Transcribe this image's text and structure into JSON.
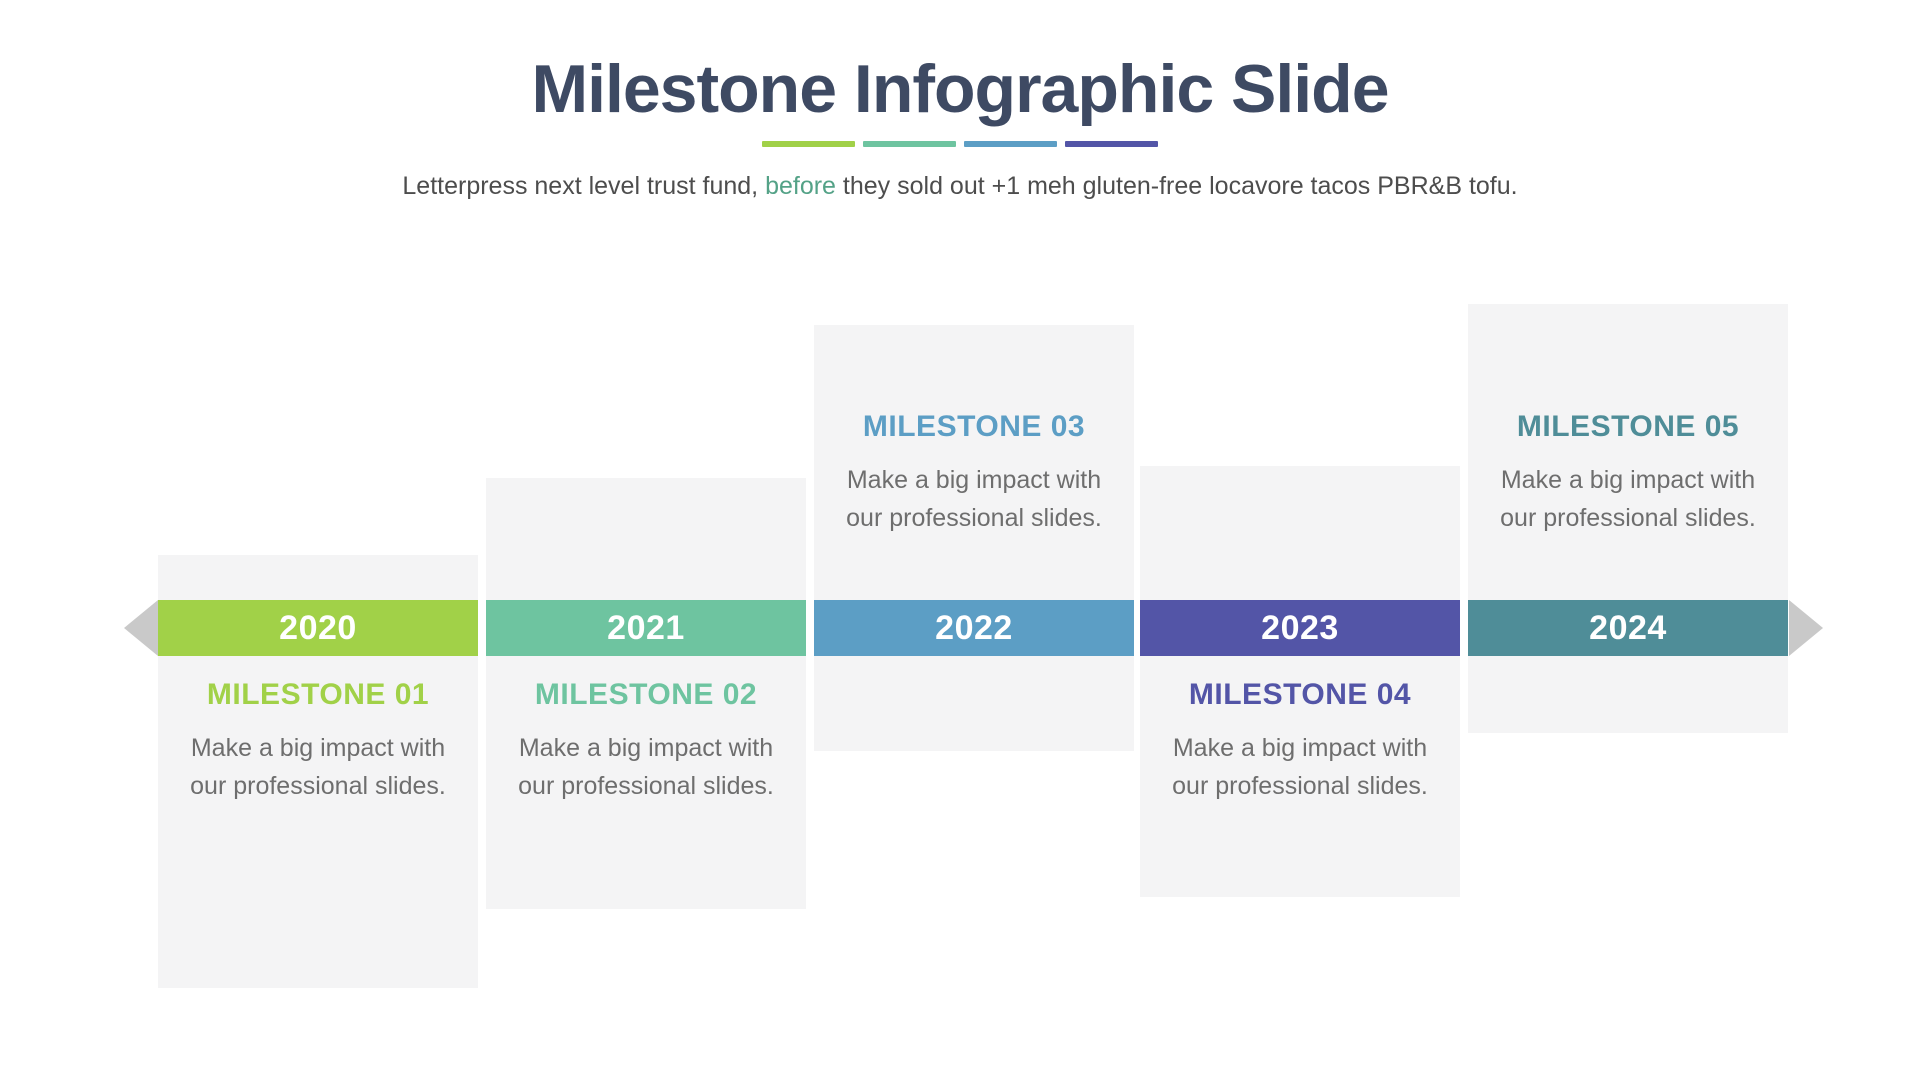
{
  "slide": {
    "title": "Milestone Infographic Slide",
    "title_color": "#3e4a63",
    "subtitle": {
      "pre": "Letterpress next level trust fund, ",
      "highlight": "before",
      "post": " they sold out +1 meh gluten-free locavore tacos PBR&B tofu."
    },
    "highlight_color": "#54a287",
    "divider_colors": [
      "#a1d148",
      "#6ec4a0",
      "#5c9ec5",
      "#5355a7"
    ]
  },
  "timeline": {
    "items": [
      {
        "year": "2020",
        "title": "MILESTONE 01",
        "description": "Make a big impact with our professional slides.",
        "color": "#a1d148",
        "content_position": "below"
      },
      {
        "year": "2021",
        "title": "MILESTONE 02",
        "description": "Make a big impact with our professional slides.",
        "color": "#6ec4a0",
        "content_position": "below"
      },
      {
        "year": "2022",
        "title": "MILESTONE 03",
        "description": "Make a big impact with our professional slides.",
        "color": "#5c9ec5",
        "content_position": "above"
      },
      {
        "year": "2023",
        "title": "MILESTONE 04",
        "description": "Make a big impact with our professional slides.",
        "color": "#5355a7",
        "content_position": "below"
      },
      {
        "year": "2024",
        "title": "MILESTONE 05",
        "description": "Make a big impact with our professional slides.",
        "color": "#4f8d98",
        "content_position": "above"
      }
    ],
    "card_background": "#f4f4f5"
  }
}
